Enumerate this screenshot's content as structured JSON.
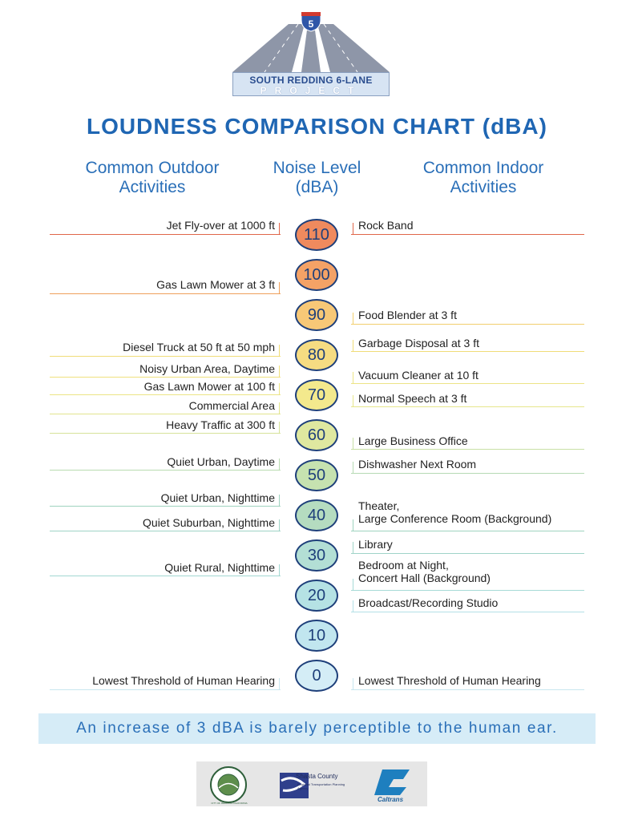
{
  "header_logo": {
    "highway_number": "5",
    "line1": "SOUTH REDDING 6-LANE",
    "line2": "PROJECT"
  },
  "title": "LOUDNESS COMPARISON CHART (dBA)",
  "columns": {
    "outdoor": "Common Outdoor\nActivities",
    "level": "Noise Level\n(dBA)",
    "indoor": "Common Indoor\nActivities"
  },
  "levels": [
    {
      "value": "110",
      "color": "#ef8a5e"
    },
    {
      "value": "100",
      "color": "#f4a266"
    },
    {
      "value": "90",
      "color": "#f7c877"
    },
    {
      "value": "80",
      "color": "#f6dc82"
    },
    {
      "value": "70",
      "color": "#f3e98d"
    },
    {
      "value": "60",
      "color": "#dfe8a0"
    },
    {
      "value": "50",
      "color": "#c6e2b0"
    },
    {
      "value": "40",
      "color": "#b5dcc0"
    },
    {
      "value": "30",
      "color": "#b3dfd5"
    },
    {
      "value": "20",
      "color": "#b5e2e4"
    },
    {
      "value": "10",
      "color": "#c1e6ef"
    },
    {
      "value": "0",
      "color": "#d4edf6"
    }
  ],
  "outdoor": [
    {
      "label": "Jet Fly-over at 1000 ft",
      "color": "#e0664a"
    },
    {
      "label": "Gas Lawn Mower at 3 ft",
      "color": "#eea05c"
    },
    {
      "label": "Diesel Truck at 50 ft at 50 mph",
      "color": "#f0dc78"
    },
    {
      "label": "Noisy Urban Area, Daytime",
      "color": "#f0e07e"
    },
    {
      "label": "Gas Lawn Mower at 100 ft",
      "color": "#ece486"
    },
    {
      "label": "Commercial Area",
      "color": "#e2e48e"
    },
    {
      "label": "Heavy Traffic at 300 ft",
      "color": "#d6e29a"
    },
    {
      "label": "Quiet Urban, Daytime",
      "color": "#b9dbb0"
    },
    {
      "label": "Quiet Urban, Nighttime",
      "color": "#9fd3bf"
    },
    {
      "label": "Quiet Suburban, Nighttime",
      "color": "#9fd3c6"
    },
    {
      "label": "Quiet Rural, Nighttime",
      "color": "#a3d8d2"
    },
    {
      "label": "Lowest Threshold of Human Hearing",
      "color": "#c8e6ef"
    }
  ],
  "indoor": [
    {
      "label": "Rock Band",
      "color": "#e0664a"
    },
    {
      "label": "Food Blender at 3 ft",
      "color": "#f2cf6e"
    },
    {
      "label": "Garbage Disposal at 3 ft",
      "color": "#f0dc78"
    },
    {
      "label": "Vacuum Cleaner at 10 ft",
      "color": "#ece486"
    },
    {
      "label": "Normal Speech at 3 ft",
      "color": "#e6e68c"
    },
    {
      "label": "Large Business Office",
      "color": "#c8e0a6"
    },
    {
      "label": "Dishwasher Next Room",
      "color": "#b6dab4"
    },
    {
      "label": "Theater,\nLarge Conference Room (Background)",
      "color": "#9fd3bf"
    },
    {
      "label": "Library",
      "color": "#a0d4c8"
    },
    {
      "label": "Bedroom at Night,\nConcert Hall (Background)",
      "color": "#a6dad6"
    },
    {
      "label": "Broadcast/Recording Studio",
      "color": "#b3e0e6"
    },
    {
      "label": "Lowest Threshold of Human Hearing",
      "color": "#c8e6ef"
    }
  ],
  "note": "An increase of 3 dBA is barely perceptible to the human ear.",
  "footer_logos": {
    "redding": "CITY OF REDDING CALIFORNIA",
    "shasta": "Shasta County",
    "shasta_sub": "Regional Transportation Planning Agency",
    "caltrans": "Caltrans"
  },
  "icons": [
    "interstate-shield-icon",
    "highway-road-icon",
    "city-seal-icon",
    "shasta-river-icon",
    "caltrans-logo-icon"
  ]
}
